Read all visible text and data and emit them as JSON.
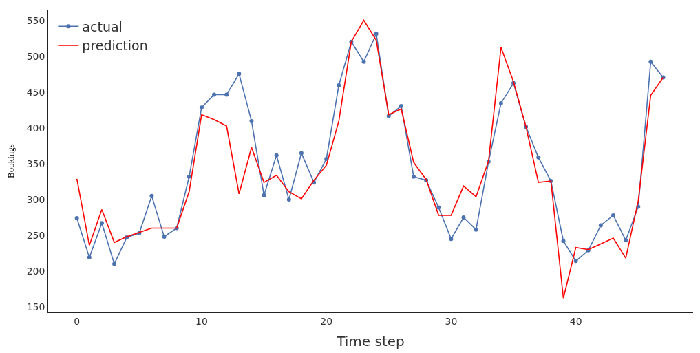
{
  "chart_data": {
    "type": "line",
    "xlabel": "Time step",
    "ylabel": "Bookings",
    "x": [
      0,
      1,
      2,
      3,
      4,
      5,
      6,
      7,
      8,
      9,
      10,
      11,
      12,
      13,
      14,
      15,
      16,
      17,
      18,
      19,
      20,
      21,
      22,
      23,
      24,
      25,
      26,
      27,
      28,
      29,
      30,
      31,
      32,
      33,
      34,
      35,
      36,
      37,
      38,
      39,
      40,
      41,
      42,
      43,
      44,
      45,
      46,
      47
    ],
    "series": [
      {
        "name": "actual",
        "color": "#4c72b0",
        "marker": "circle",
        "values": [
          274,
          219,
          267,
          210,
          247,
          253,
          305,
          248,
          260,
          332,
          429,
          447,
          447,
          476,
          410,
          306,
          362,
          300,
          365,
          324,
          357,
          460,
          521,
          493,
          532,
          417,
          431,
          332,
          327,
          289,
          245,
          275,
          258,
          353,
          435,
          463,
          402,
          359,
          326,
          242,
          214,
          229,
          264,
          278,
          243,
          290,
          493,
          471
        ]
      },
      {
        "name": "prediction",
        "color": "#ff0000",
        "values": [
          329,
          236,
          286,
          240,
          248,
          254,
          260,
          260,
          260,
          311,
          419,
          412,
          403,
          308,
          373,
          324,
          334,
          311,
          301,
          327,
          348,
          410,
          521,
          551,
          523,
          419,
          427,
          352,
          328,
          278,
          278,
          319,
          304,
          354,
          513,
          465,
          402,
          324,
          326,
          162,
          233,
          230,
          238,
          246,
          218,
          298,
          446,
          471
        ]
      }
    ],
    "xlim": [
      -2.3,
      49.4
    ],
    "xticks": [
      0,
      10,
      20,
      30,
      40
    ],
    "ylim": [
      143,
      565
    ],
    "yticks": [
      150,
      200,
      250,
      300,
      350,
      400,
      450,
      500,
      550
    ],
    "grid": false,
    "legend": "top left"
  }
}
